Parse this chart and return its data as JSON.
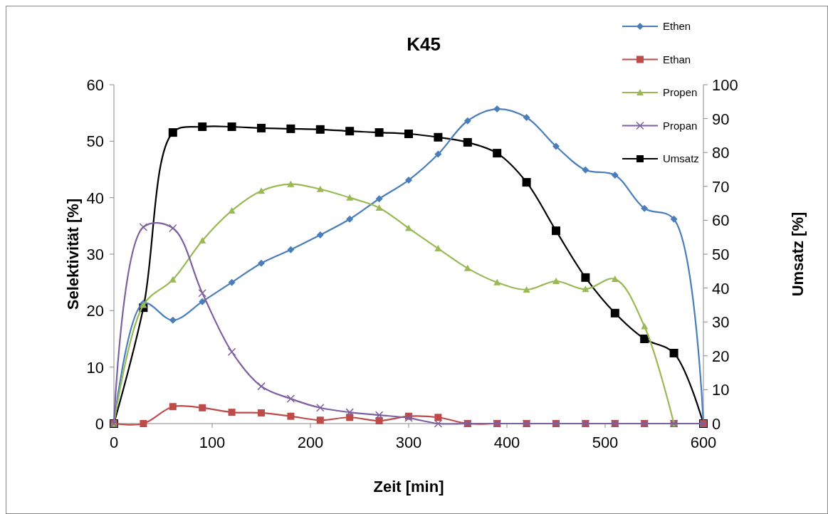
{
  "chart_data": {
    "type": "line",
    "title": "K45",
    "xlabel": "Zeit [min]",
    "ylabel": "Selektivität [%]",
    "y2label": "Umsatz [%]",
    "x": [
      0,
      30,
      60,
      90,
      120,
      150,
      180,
      210,
      240,
      270,
      300,
      330,
      360,
      390,
      420,
      450,
      480,
      510,
      540,
      570,
      600
    ],
    "xlim": [
      0,
      600
    ],
    "xticks": [
      0,
      100,
      200,
      300,
      400,
      500,
      600
    ],
    "ylim": [
      0,
      60
    ],
    "yticks": [
      0,
      10,
      20,
      30,
      40,
      50,
      60
    ],
    "y2lim": [
      0,
      100
    ],
    "y2ticks": [
      0,
      10,
      20,
      30,
      40,
      50,
      60,
      70,
      80,
      90,
      100
    ],
    "grid": false,
    "legend": "right",
    "line_style": "solid",
    "series": [
      {
        "name": "Ethen",
        "color": "#4a7ebb",
        "marker": "diamond",
        "values": [
          0,
          21.3,
          18.3,
          21.6,
          25.0,
          28.4,
          30.8,
          33.4,
          36.2,
          39.8,
          43.1,
          47.7,
          53.6,
          55.7,
          54.2,
          49.1,
          44.9,
          44.0,
          38.1,
          36.2,
          0
        ]
      },
      {
        "name": "Ethan",
        "color": "#be4b48",
        "marker": "square",
        "values": [
          0,
          0,
          3.0,
          2.8,
          2.0,
          1.9,
          1.3,
          0.6,
          1.1,
          0.5,
          1.3,
          1.1,
          0,
          0,
          0,
          0,
          0,
          0,
          0,
          0,
          0
        ]
      },
      {
        "name": "Propen",
        "color": "#98b954",
        "marker": "triangle",
        "values": [
          0,
          21,
          25.5,
          32.4,
          37.7,
          41.2,
          42.4,
          41.5,
          40.0,
          38.2,
          34.6,
          31.0,
          27.5,
          25.0,
          23.7,
          25.2,
          23.8,
          25.6,
          17.2,
          0,
          null
        ]
      },
      {
        "name": "Propan",
        "color": "#7d60a0",
        "marker": "cross",
        "values": [
          0,
          34.8,
          34.6,
          23.1,
          12.7,
          6.6,
          4.4,
          2.8,
          2.0,
          1.5,
          1.0,
          0,
          0,
          0,
          0,
          0,
          0,
          0,
          0,
          0,
          0
        ]
      },
      {
        "name": "Umsatz",
        "color": "#000000",
        "marker": "square",
        "axis": "y2",
        "values": [
          0,
          34.2,
          85.9,
          87.6,
          87.6,
          87.2,
          87.0,
          86.8,
          86.3,
          85.9,
          85.5,
          84.5,
          83.0,
          79.8,
          71.2,
          56.9,
          43.1,
          32.6,
          25.0,
          20.8,
          0
        ]
      }
    ]
  }
}
